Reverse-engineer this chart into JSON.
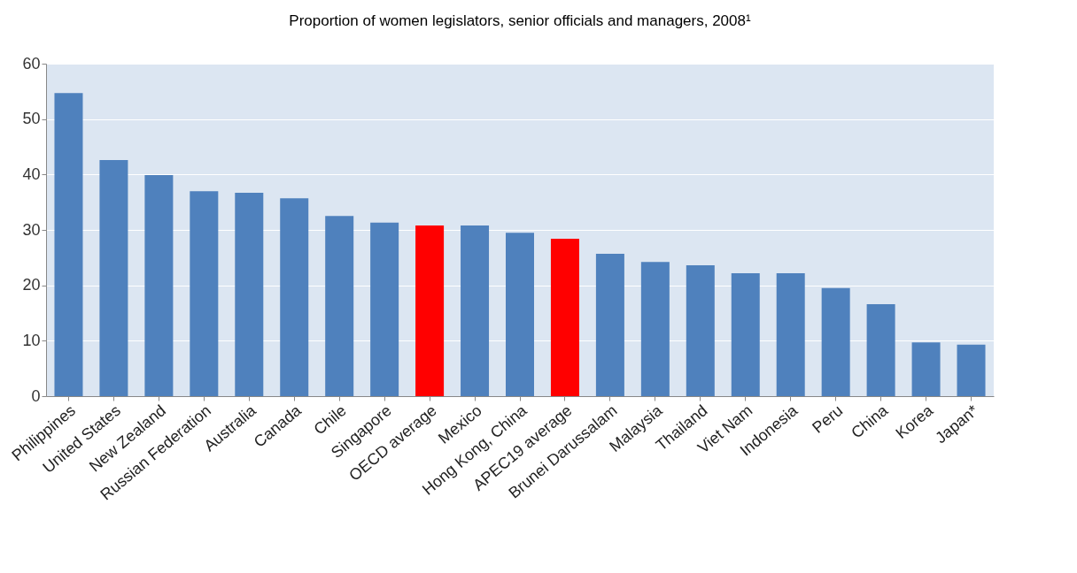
{
  "chart_data": {
    "type": "bar",
    "title": "Proportion of women legislators, senior officials and managers, 2008¹",
    "categories": [
      "Philippines",
      "United States",
      "New Zealand",
      "Russian Federation",
      "Australia",
      "Canada",
      "Chile",
      "Singapore",
      "OECD average",
      "Mexico",
      "Hong Kong, China",
      "APEC19 average",
      "Brunei Darussalam",
      "Malaysia",
      "Thailand",
      "Viet Nam",
      "Indonesia",
      "Peru",
      "China",
      "Korea",
      "Japan*"
    ],
    "values": [
      54.7,
      42.6,
      39.9,
      37.0,
      36.7,
      35.7,
      32.5,
      31.3,
      30.8,
      30.8,
      29.5,
      28.4,
      25.7,
      24.2,
      23.6,
      22.2,
      22.2,
      19.5,
      16.6,
      9.7,
      9.3
    ],
    "colors": [
      "#4f81bd",
      "#4f81bd",
      "#4f81bd",
      "#4f81bd",
      "#4f81bd",
      "#4f81bd",
      "#4f81bd",
      "#4f81bd",
      "#ff0000",
      "#4f81bd",
      "#4f81bd",
      "#ff0000",
      "#4f81bd",
      "#4f81bd",
      "#4f81bd",
      "#4f81bd",
      "#4f81bd",
      "#4f81bd",
      "#4f81bd",
      "#4f81bd",
      "#4f81bd"
    ],
    "ylim": [
      0,
      60
    ],
    "yticks": [
      0,
      10,
      20,
      30,
      40,
      50,
      60
    ],
    "grid": "y"
  }
}
